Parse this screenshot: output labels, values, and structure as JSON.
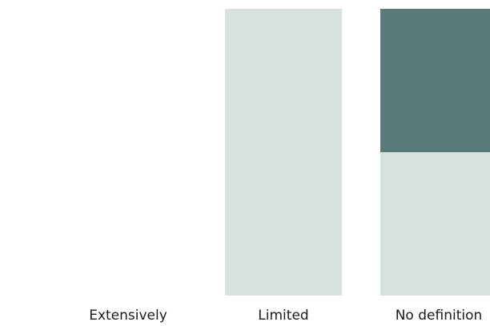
{
  "chart_data": {
    "type": "bar",
    "stacked": true,
    "categories": [
      "Extensively",
      "Limited",
      "No definition"
    ],
    "series": [
      {
        "color": "#d7e1dd",
        "values": [
          0,
          100,
          50
        ]
      },
      {
        "color": "#587b79",
        "values": [
          0,
          0,
          50
        ]
      }
    ],
    "ylim": [
      0,
      100
    ],
    "grid": false,
    "legend": "none",
    "title": "",
    "xlabel": "",
    "ylabel": ""
  }
}
